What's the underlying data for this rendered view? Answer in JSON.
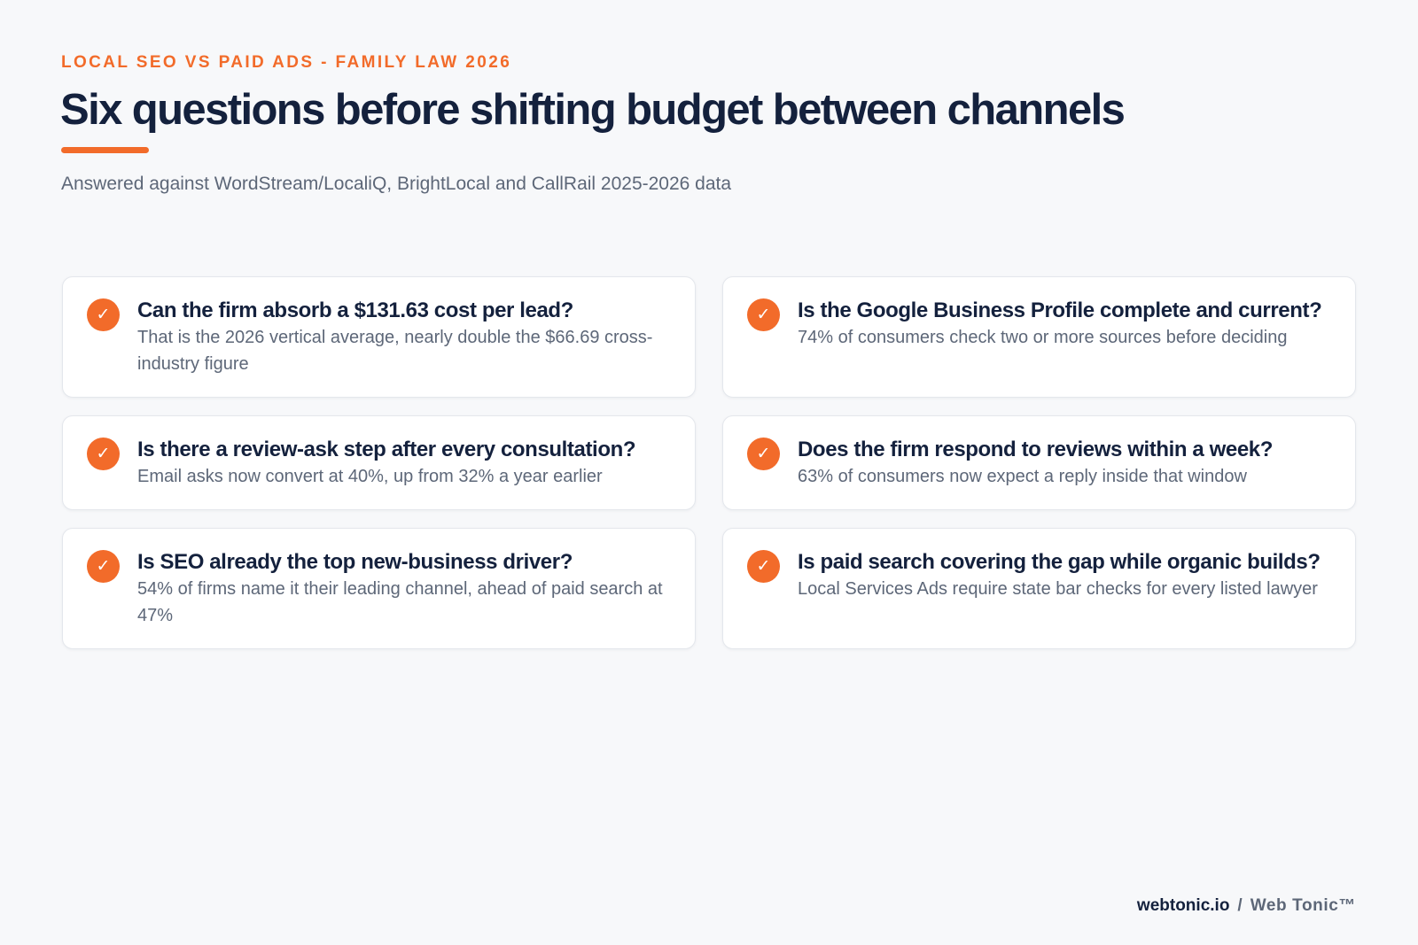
{
  "header": {
    "eyebrow": "LOCAL SEO VS PAID ADS - FAMILY LAW 2026",
    "title": "Six questions before shifting budget between channels",
    "subtitle": "Answered against WordStream/LocaliQ, BrightLocal and CallRail 2025-2026 data"
  },
  "cards": [
    {
      "icon": "check-icon",
      "question": "Can the firm absorb a $131.63 cost per lead?",
      "answer": "That is the 2026 vertical average, nearly double the $66.69 cross-industry figure"
    },
    {
      "icon": "check-icon",
      "question": "Is the Google Business Profile complete and current?",
      "answer": "74% of consumers check two or more sources before deciding"
    },
    {
      "icon": "check-icon",
      "question": "Is there a review-ask step after every consultation?",
      "answer": "Email asks now convert at 40%, up from 32% a year earlier"
    },
    {
      "icon": "check-icon",
      "question": "Does the firm respond to reviews within a week?",
      "answer": "63% of consumers now expect a reply inside that window"
    },
    {
      "icon": "check-icon",
      "question": "Is SEO already the top new-business driver?",
      "answer": "54% of firms name it their leading channel, ahead of paid search at 47%"
    },
    {
      "icon": "check-icon",
      "question": "Is paid search covering the gap while organic builds?",
      "answer": "Local Services Ads require state bar checks for every listed lawyer"
    }
  ],
  "footer": {
    "site": "webtonic.io",
    "separator": "/",
    "brand": "Web Tonic™"
  },
  "colors": {
    "accent": "#f26b2a",
    "heading": "#14213d",
    "body_text": "#5d6778",
    "background": "#f7f8fa",
    "card": "#ffffff"
  }
}
